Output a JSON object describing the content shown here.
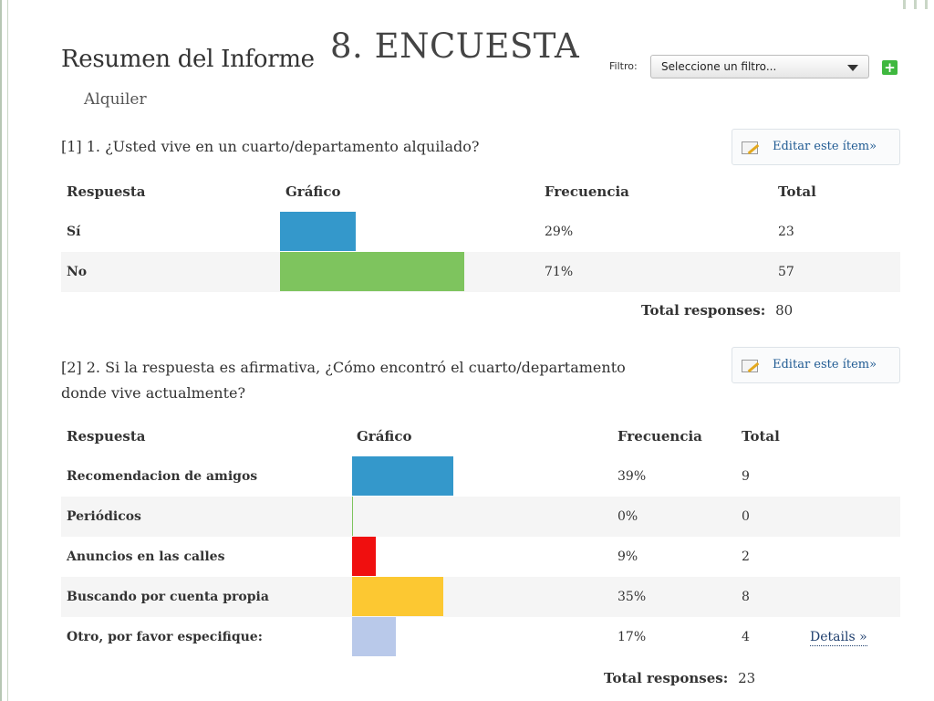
{
  "header": {
    "summary_title": "Resumen del Informe",
    "slide_title": "8. ENCUESTA",
    "subtitle": "Alquiler",
    "filter_label": "Filtro:",
    "filter_selected": "Seleccione un filtro...",
    "add_icon": "plus-icon"
  },
  "colors": {
    "blue": "#3498cb",
    "green": "#7ec45e",
    "red": "#f00f0f",
    "yellow": "#fcc832",
    "lavender": "#b9c9ea",
    "link": "#1f5a92"
  },
  "questions": [
    {
      "question": "[1] 1. ¿Usted vive en un cuarto/departamento alquilado?",
      "edit_label": "Editar este ítem»",
      "headers": {
        "response": "Respuesta",
        "chart": "Gráfico",
        "frequency": "Frecuencia",
        "total": "Total"
      },
      "total_label": "Total responses:",
      "total_value": "80"
    },
    {
      "question_line1": "[2] 2. Si la respuesta es afirmativa, ¿Cómo encontró el cuarto/departamento",
      "question_line2": "donde vive actualmente?",
      "edit_label": "Editar este ítem»",
      "headers": {
        "response": "Respuesta",
        "chart": "Gráfico",
        "frequency": "Frecuencia",
        "total": "Total"
      },
      "details_label": "Details »",
      "total_label": "Total responses:",
      "total_value": "23"
    }
  ],
  "chart_data": [
    {
      "type": "bar",
      "categories": [
        "Sí",
        "No"
      ],
      "values": [
        29,
        71
      ],
      "frequency_labels": [
        "29%",
        "71%"
      ],
      "totals": [
        "23",
        "57"
      ],
      "colors": [
        "#3498cb",
        "#7ec45e"
      ],
      "xlim": [
        0,
        100
      ]
    },
    {
      "type": "bar",
      "categories": [
        "Recomendacion de amigos",
        "Periódicos",
        "Anuncios en las calles",
        "Buscando por cuenta propia",
        "Otro, por favor especifique:"
      ],
      "values": [
        39,
        0,
        9,
        35,
        17
      ],
      "frequency_labels": [
        "39%",
        "0%",
        "9%",
        "35%",
        "17%"
      ],
      "totals": [
        "9",
        "0",
        "2",
        "8",
        "4"
      ],
      "colors": [
        "#3498cb",
        "#7ec45e",
        "#f00f0f",
        "#fcc832",
        "#b9c9ea"
      ],
      "xlim": [
        0,
        100
      ]
    }
  ]
}
